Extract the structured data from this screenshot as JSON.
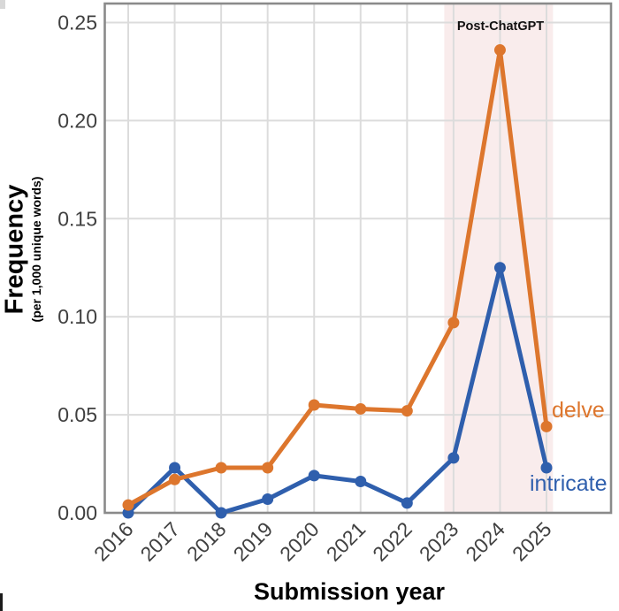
{
  "labels": {
    "ylabel": "Frequency",
    "ylabel_sub": "(per 1,000 unique words)",
    "xlabel": "Submission year",
    "annotation": "Post-ChatGPT"
  },
  "colors": {
    "delve": "#DD762D",
    "intricate": "#2F5FAD",
    "shaded_region": "#F9ECEC",
    "gridline": "#DCDCDC",
    "frame": "#8A8A8A",
    "tick_text": "#404040",
    "annotation_text": "#111111"
  },
  "chart_data": {
    "type": "line",
    "title": "",
    "xlabel": "Submission year",
    "ylabel": "Frequency (per 1,000 unique words)",
    "x": [
      2016,
      2017,
      2018,
      2019,
      2020,
      2021,
      2022,
      2023,
      2024,
      2025
    ],
    "series": [
      {
        "name": "delve",
        "color": "#DD762D",
        "values": [
          0.004,
          0.017,
          0.023,
          0.023,
          0.055,
          0.053,
          0.052,
          0.097,
          0.236,
          0.044
        ]
      },
      {
        "name": "intricate",
        "color": "#2F5FAD",
        "values": [
          0.0,
          0.023,
          0.0,
          0.007,
          0.019,
          0.016,
          0.005,
          0.028,
          0.125,
          0.023
        ]
      }
    ],
    "yticks": [
      "0.00",
      "0.05",
      "0.10",
      "0.15",
      "0.20",
      "0.25"
    ],
    "ytick_values": [
      0,
      0.05,
      0.1,
      0.15,
      0.2,
      0.25
    ],
    "ylim": [
      0,
      0.26
    ],
    "grid": true,
    "legend_position": "inline-right",
    "shaded_region": {
      "label": "Post-ChatGPT",
      "x_start": 2022.8,
      "x_end": 2025.14,
      "color": "#F9ECEC"
    }
  }
}
